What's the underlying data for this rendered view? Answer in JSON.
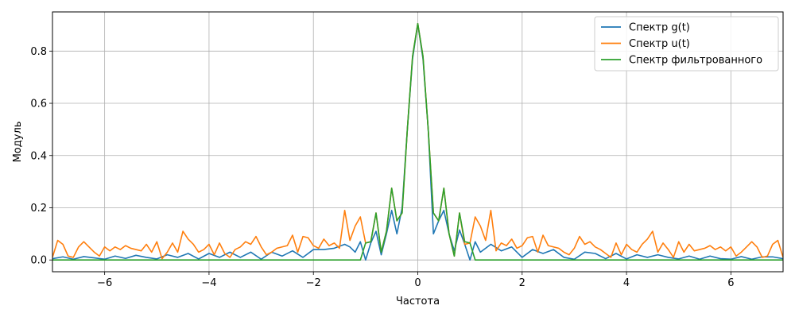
{
  "chart_data": {
    "type": "line",
    "title": "",
    "xlabel": "Частота",
    "ylabel": "Модуль",
    "xlim": [
      -7.0,
      7.0
    ],
    "ylim": [
      -0.045,
      0.95
    ],
    "grid": true,
    "legend_position": "top-right",
    "x_ticks": [
      -6,
      -4,
      -2,
      0,
      2,
      4,
      6
    ],
    "x_tick_labels": [
      "−6",
      "−4",
      "−2",
      "0",
      "2",
      "4",
      "6"
    ],
    "y_ticks": [
      0.0,
      0.2,
      0.4,
      0.6,
      0.8
    ],
    "y_tick_labels": [
      "0.0",
      "0.2",
      "0.4",
      "0.6",
      "0.8"
    ],
    "series": [
      {
        "name": "Спектр g(t)",
        "color": "#1f77b4",
        "x": [
          -7.0,
          -6.8,
          -6.6,
          -6.4,
          -6.2,
          -6.0,
          -5.8,
          -5.6,
          -5.4,
          -5.2,
          -5.0,
          -4.8,
          -4.6,
          -4.4,
          -4.2,
          -4.0,
          -3.8,
          -3.6,
          -3.4,
          -3.2,
          -3.0,
          -2.8,
          -2.6,
          -2.4,
          -2.2,
          -2.0,
          -1.8,
          -1.6,
          -1.4,
          -1.3,
          -1.2,
          -1.1,
          -1.0,
          -0.9,
          -0.8,
          -0.7,
          -0.6,
          -0.5,
          -0.4,
          -0.3,
          -0.2,
          -0.1,
          0.0,
          0.1,
          0.2,
          0.3,
          0.4,
          0.5,
          0.6,
          0.7,
          0.8,
          0.9,
          1.0,
          1.1,
          1.2,
          1.4,
          1.6,
          1.8,
          2.0,
          2.2,
          2.4,
          2.6,
          2.8,
          3.0,
          3.2,
          3.4,
          3.6,
          3.8,
          4.0,
          4.2,
          4.4,
          4.6,
          4.8,
          5.0,
          5.2,
          5.4,
          5.6,
          5.8,
          6.0,
          6.2,
          6.4,
          6.6,
          6.8,
          7.0
        ],
        "y": [
          0.005,
          0.012,
          0.003,
          0.013,
          0.008,
          0.003,
          0.015,
          0.006,
          0.018,
          0.01,
          0.004,
          0.02,
          0.01,
          0.025,
          0.004,
          0.025,
          0.01,
          0.03,
          0.01,
          0.03,
          0.003,
          0.03,
          0.015,
          0.035,
          0.01,
          0.04,
          0.04,
          0.045,
          0.06,
          0.05,
          0.03,
          0.07,
          0.0,
          0.065,
          0.11,
          0.02,
          0.1,
          0.19,
          0.1,
          0.2,
          0.5,
          0.77,
          0.905,
          0.77,
          0.5,
          0.1,
          0.15,
          0.19,
          0.1,
          0.035,
          0.115,
          0.06,
          0.0,
          0.07,
          0.03,
          0.06,
          0.035,
          0.05,
          0.01,
          0.04,
          0.025,
          0.04,
          0.01,
          0.003,
          0.03,
          0.025,
          0.005,
          0.025,
          0.004,
          0.02,
          0.01,
          0.02,
          0.01,
          0.004,
          0.015,
          0.003,
          0.015,
          0.005,
          0.003,
          0.013,
          0.003,
          0.012,
          0.012,
          0.005
        ]
      },
      {
        "name": "Спектр u(t)",
        "color": "#ff7f0e",
        "x": [
          -7.0,
          -6.9,
          -6.8,
          -6.7,
          -6.6,
          -6.5,
          -6.4,
          -6.3,
          -6.2,
          -6.1,
          -6.0,
          -5.9,
          -5.8,
          -5.7,
          -5.6,
          -5.5,
          -5.4,
          -5.3,
          -5.2,
          -5.1,
          -5.0,
          -4.9,
          -4.8,
          -4.7,
          -4.6,
          -4.5,
          -4.4,
          -4.3,
          -4.2,
          -4.1,
          -4.0,
          -3.9,
          -3.8,
          -3.7,
          -3.6,
          -3.5,
          -3.4,
          -3.3,
          -3.2,
          -3.1,
          -3.0,
          -2.9,
          -2.8,
          -2.7,
          -2.6,
          -2.5,
          -2.4,
          -2.3,
          -2.2,
          -2.1,
          -2.0,
          -1.9,
          -1.8,
          -1.7,
          -1.6,
          -1.5,
          -1.4,
          -1.3,
          -1.2,
          -1.1,
          -1.0,
          -0.9,
          -0.8,
          -0.7,
          -0.6,
          -0.5,
          -0.4,
          -0.3,
          -0.2,
          -0.1,
          0.0,
          0.1,
          0.2,
          0.3,
          0.4,
          0.5,
          0.6,
          0.7,
          0.8,
          0.9,
          1.0,
          1.1,
          1.2,
          1.3,
          1.4,
          1.5,
          1.6,
          1.7,
          1.8,
          1.9,
          2.0,
          2.1,
          2.2,
          2.3,
          2.4,
          2.5,
          2.6,
          2.7,
          2.8,
          2.9,
          3.0,
          3.1,
          3.2,
          3.3,
          3.4,
          3.5,
          3.6,
          3.7,
          3.8,
          3.9,
          4.0,
          4.1,
          4.2,
          4.3,
          4.4,
          4.5,
          4.6,
          4.7,
          4.8,
          4.9,
          5.0,
          5.1,
          5.2,
          5.3,
          5.4,
          5.5,
          5.6,
          5.7,
          5.8,
          5.9,
          6.0,
          6.1,
          6.2,
          6.3,
          6.4,
          6.5,
          6.6,
          6.7,
          6.8,
          6.9,
          7.0
        ],
        "y": [
          0.01,
          0.075,
          0.06,
          0.015,
          0.01,
          0.05,
          0.07,
          0.05,
          0.03,
          0.015,
          0.05,
          0.035,
          0.05,
          0.04,
          0.055,
          0.045,
          0.04,
          0.035,
          0.06,
          0.03,
          0.07,
          0.005,
          0.03,
          0.065,
          0.03,
          0.11,
          0.08,
          0.06,
          0.03,
          0.04,
          0.06,
          0.02,
          0.065,
          0.025,
          0.01,
          0.04,
          0.05,
          0.07,
          0.06,
          0.09,
          0.05,
          0.02,
          0.03,
          0.045,
          0.05,
          0.055,
          0.095,
          0.03,
          0.09,
          0.085,
          0.055,
          0.045,
          0.08,
          0.055,
          0.065,
          0.045,
          0.19,
          0.075,
          0.13,
          0.165,
          0.065,
          0.07,
          0.18,
          0.03,
          0.11,
          0.275,
          0.15,
          0.18,
          0.5,
          0.78,
          0.905,
          0.78,
          0.5,
          0.18,
          0.15,
          0.275,
          0.1,
          0.015,
          0.18,
          0.06,
          0.065,
          0.165,
          0.13,
          0.075,
          0.19,
          0.035,
          0.065,
          0.055,
          0.08,
          0.045,
          0.055,
          0.085,
          0.09,
          0.03,
          0.095,
          0.055,
          0.05,
          0.045,
          0.03,
          0.02,
          0.045,
          0.09,
          0.06,
          0.07,
          0.05,
          0.04,
          0.025,
          0.01,
          0.065,
          0.02,
          0.06,
          0.04,
          0.03,
          0.06,
          0.08,
          0.11,
          0.03,
          0.065,
          0.04,
          0.01,
          0.07,
          0.03,
          0.06,
          0.035,
          0.04,
          0.045,
          0.055,
          0.04,
          0.05,
          0.035,
          0.05,
          0.015,
          0.03,
          0.05,
          0.07,
          0.05,
          0.01,
          0.015,
          0.06,
          0.075,
          0.01
        ]
      },
      {
        "name": "Спектр фильтрованного",
        "color": "#2ca02c",
        "x": [
          -7.0,
          -1.1,
          -1.0,
          -0.9,
          -0.8,
          -0.7,
          -0.6,
          -0.5,
          -0.4,
          -0.3,
          -0.2,
          -0.1,
          0.0,
          0.1,
          0.2,
          0.3,
          0.4,
          0.5,
          0.6,
          0.7,
          0.8,
          0.9,
          1.0,
          1.1,
          7.0
        ],
        "y": [
          0.0,
          0.0,
          0.065,
          0.07,
          0.18,
          0.03,
          0.11,
          0.275,
          0.15,
          0.18,
          0.5,
          0.78,
          0.905,
          0.78,
          0.5,
          0.18,
          0.15,
          0.275,
          0.1,
          0.015,
          0.18,
          0.07,
          0.065,
          0.0,
          0.0
        ]
      }
    ]
  }
}
